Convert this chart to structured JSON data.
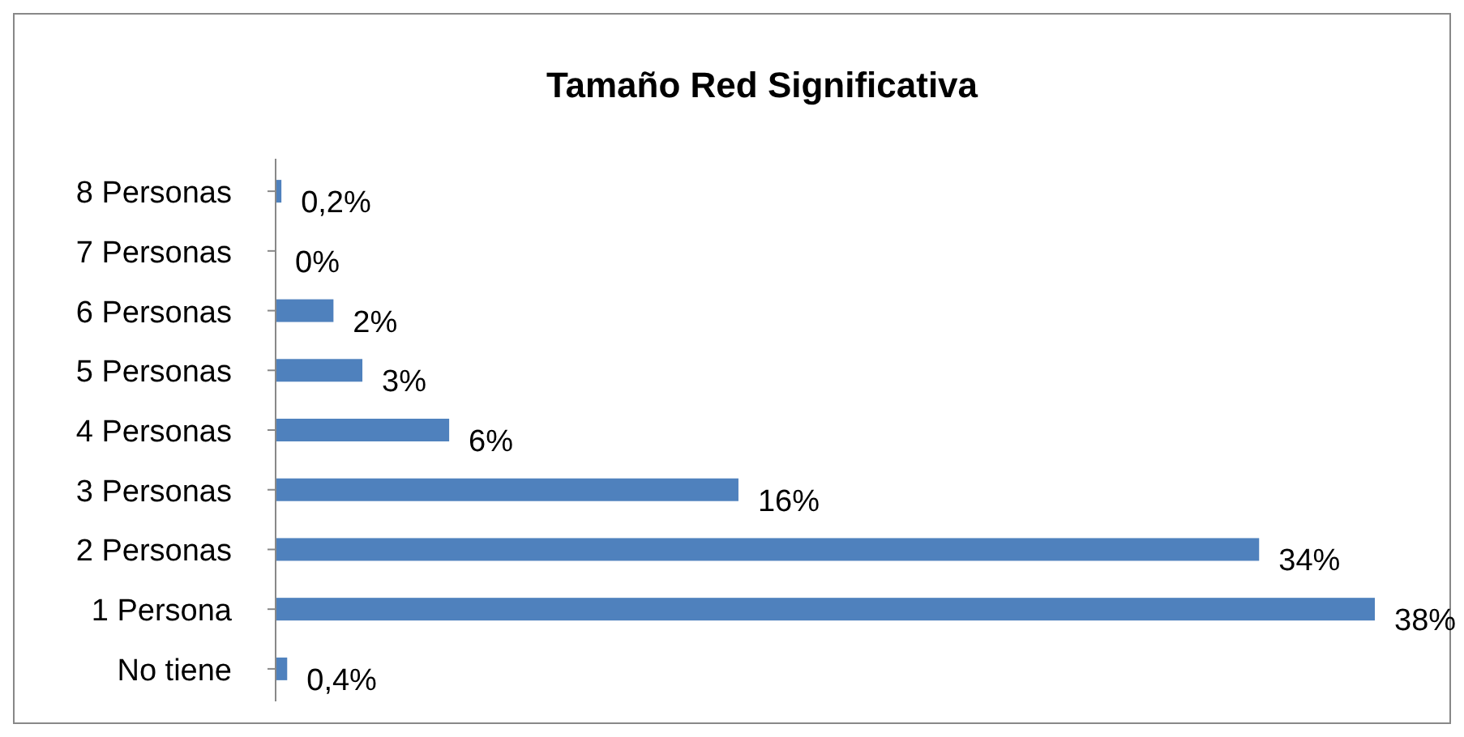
{
  "chart_data": {
    "type": "bar",
    "orientation": "horizontal",
    "title": "Tamaño Red Significativa",
    "categories": [
      "8 Personas",
      "7 Personas",
      "6 Personas",
      "5 Personas",
      "4 Personas",
      "3 Personas",
      "2 Personas",
      "1 Persona",
      "No tiene"
    ],
    "values": [
      0.2,
      0,
      2,
      3,
      6,
      16,
      34,
      38,
      0.4
    ],
    "value_labels": [
      "0,2%",
      "0%",
      "2%",
      "3%",
      "6%",
      "16%",
      "34%",
      "38%",
      "0,4%"
    ],
    "color": "#4f81bd"
  }
}
